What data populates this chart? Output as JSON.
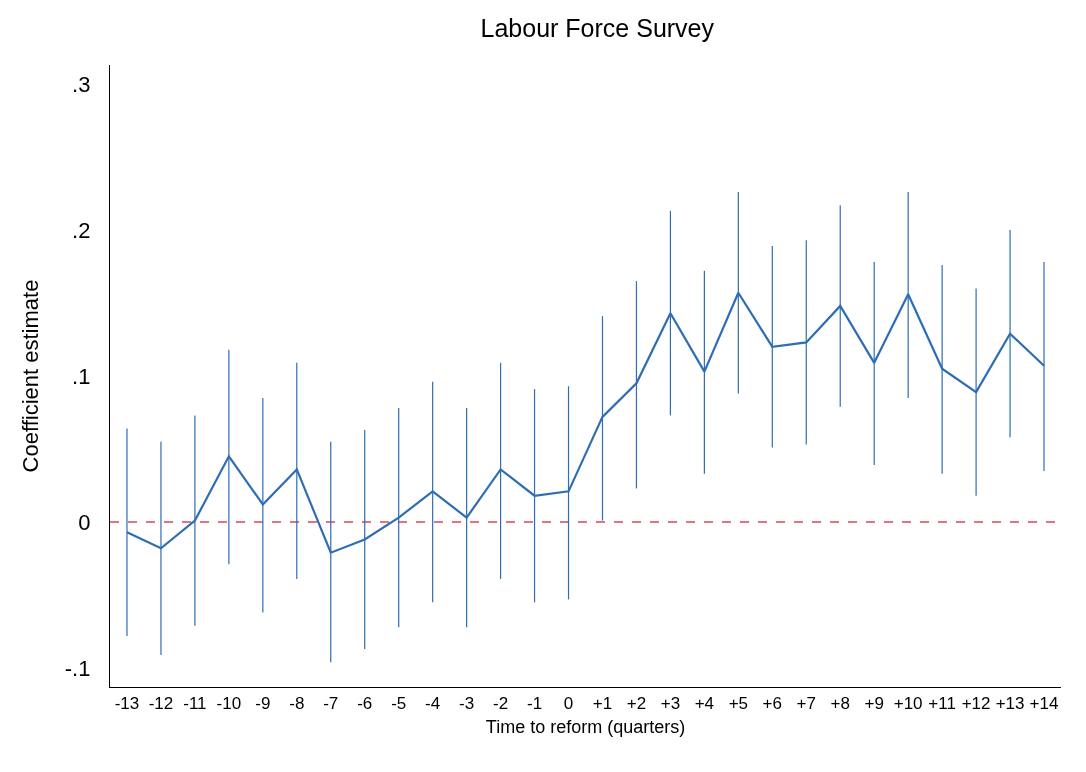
{
  "chart_data": {
    "type": "line",
    "title": "Labour Force Survey",
    "xlabel": "Time to reform (quarters)",
    "ylabel": "Coefficient estimate",
    "categories": [
      "-13",
      "-12",
      "-11",
      "-10",
      "-9",
      "-8",
      "-7",
      "-6",
      "-5",
      "-4",
      "-3",
      "-2",
      "-1",
      "0",
      "+1",
      "+2",
      "+3",
      "+4",
      "+5",
      "+6",
      "+7",
      "+8",
      "+9",
      "+10",
      "+11",
      "+12",
      "+13",
      "+14"
    ],
    "series": [
      {
        "color": "#2e6db4",
        "values": [
          -0.007,
          -0.018,
          0.001,
          0.045,
          0.012,
          0.036,
          -0.021,
          -0.012,
          0.003,
          0.021,
          0.003,
          0.036,
          0.018,
          0.021,
          0.072,
          0.095,
          0.143,
          0.103,
          0.157,
          0.12,
          0.123,
          0.148,
          0.109,
          0.156,
          0.105,
          0.089,
          0.129,
          0.107
        ],
        "errors": [
          [
            -0.078,
            0.064
          ],
          [
            -0.091,
            0.055
          ],
          [
            -0.071,
            0.073
          ],
          [
            -0.029,
            0.118
          ],
          [
            -0.062,
            0.085
          ],
          [
            -0.039,
            0.109
          ],
          [
            -0.096,
            0.055
          ],
          [
            -0.087,
            0.063
          ],
          [
            -0.072,
            0.078
          ],
          [
            -0.055,
            0.096
          ],
          [
            -0.072,
            0.078
          ],
          [
            -0.039,
            0.109
          ],
          [
            -0.055,
            0.091
          ],
          [
            -0.053,
            0.093
          ],
          [
            0.001,
            0.141
          ],
          [
            0.023,
            0.165
          ],
          [
            0.073,
            0.213
          ],
          [
            0.033,
            0.172
          ],
          [
            0.088,
            0.226
          ],
          [
            0.051,
            0.189
          ],
          [
            0.053,
            0.193
          ],
          [
            0.079,
            0.217
          ],
          [
            0.039,
            0.178
          ],
          [
            0.085,
            0.226
          ],
          [
            0.033,
            0.176
          ],
          [
            0.018,
            0.16
          ],
          [
            0.058,
            0.2
          ],
          [
            0.035,
            0.178
          ]
        ]
      }
    ],
    "ylim": [
      -0.113,
      0.313
    ],
    "yticks": [
      {
        "value": -0.1,
        "label": "-.1"
      },
      {
        "value": 0,
        "label": "0"
      },
      {
        "value": 0.1,
        "label": ".1"
      },
      {
        "value": 0.2,
        "label": ".2"
      },
      {
        "value": 0.3,
        "label": ".3"
      }
    ],
    "ref_lines": [
      {
        "axis": "y",
        "value": 0,
        "color": "#d9475a",
        "line_style": "dashed"
      }
    ],
    "grid": false
  }
}
